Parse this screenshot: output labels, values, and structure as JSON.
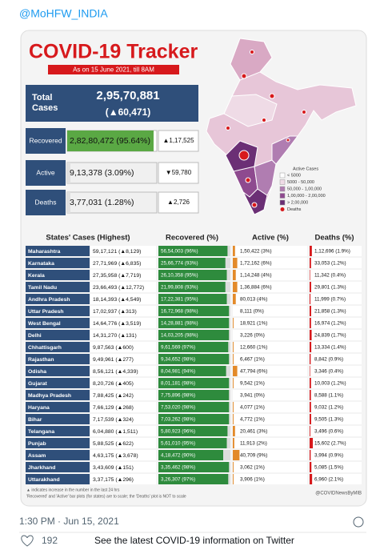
{
  "handle": "@MoHFW_INDIA",
  "infographic": {
    "title": "COVID-19 Tracker",
    "subtitle": "As on 15 June 2021, till 8AM",
    "total": {
      "label": "Total Cases",
      "value": "2,95,70,881",
      "change": "(▲60,471)"
    },
    "summary": [
      {
        "label": "Recovered",
        "value": "2,82,80,472 (95.64%)",
        "change": "▲1,17,525"
      },
      {
        "label": "Active",
        "value": "9,13,378 (3.09%)",
        "change": "▼59,780"
      },
      {
        "label": "Deaths",
        "value": "3,77,031 (1.28%)",
        "change": "▲2,726"
      }
    ],
    "legend": {
      "title": "Active Cases",
      "items": [
        "< 5000",
        "5000 - 50,000",
        "50,000 - 1,00,000",
        "1,00,000 - 2,00,000",
        "> 2,00,000",
        "Deaths"
      ]
    },
    "table": {
      "headers": [
        "States' Cases (Highest)",
        "Recovered (%)",
        "Active (%)",
        "Deaths (%)"
      ],
      "rows": [
        {
          "state": "Maharashtra",
          "cases": "59,17,121 (▲8,129)",
          "recovered": "56,54,003 (96%)",
          "recovered_pct": 96,
          "active": "1,50,422 (3%)",
          "active_pct": 3,
          "deaths": "1,12,696 (1.9%)",
          "deaths_pct": 1.9
        },
        {
          "state": "Karnataka",
          "cases": "27,71,969 (▲6,835)",
          "recovered": "25,66,774 (93%)",
          "recovered_pct": 93,
          "active": "1,72,162 (6%)",
          "active_pct": 6,
          "deaths": "33,053 (1.2%)",
          "deaths_pct": 1.2
        },
        {
          "state": "Kerala",
          "cases": "27,35,958 (▲7,719)",
          "recovered": "26,10,358 (95%)",
          "recovered_pct": 95,
          "active": "1,14,248 (4%)",
          "active_pct": 4,
          "deaths": "11,342 (0.4%)",
          "deaths_pct": 0.4
        },
        {
          "state": "Tamil Nadu",
          "cases": "23,66,493 (▲12,772)",
          "recovered": "21,99,808 (93%)",
          "recovered_pct": 93,
          "active": "1,36,884 (6%)",
          "active_pct": 6,
          "deaths": "29,801 (1.3%)",
          "deaths_pct": 1.3
        },
        {
          "state": "Andhra Pradesh",
          "cases": "18,14,393 (▲4,549)",
          "recovered": "17,22,381 (95%)",
          "recovered_pct": 95,
          "active": "80,013 (4%)",
          "active_pct": 4,
          "deaths": "11,999 (0.7%)",
          "deaths_pct": 0.7
        },
        {
          "state": "Uttar Pradesh",
          "cases": "17,02,937 (▲313)",
          "recovered": "16,72,968 (98%)",
          "recovered_pct": 98,
          "active": "8,111 (0%)",
          "active_pct": 0,
          "deaths": "21,858 (1.3%)",
          "deaths_pct": 1.3
        },
        {
          "state": "West Bengal",
          "cases": "14,64,776 (▲3,519)",
          "recovered": "14,28,881 (98%)",
          "recovered_pct": 98,
          "active": "18,921 (1%)",
          "active_pct": 1,
          "deaths": "16,974 (1.2%)",
          "deaths_pct": 1.2
        },
        {
          "state": "Delhi",
          "cases": "14,31,270 (▲131)",
          "recovered": "14,03,205 (98%)",
          "recovered_pct": 98,
          "active": "3,226 (0%)",
          "active_pct": 0,
          "deaths": "24,839 (1.7%)",
          "deaths_pct": 1.7
        },
        {
          "state": "Chhattisgarh",
          "cases": "9,87,563 (▲600)",
          "recovered": "9,61,569 (97%)",
          "recovered_pct": 97,
          "active": "12,660 (1%)",
          "active_pct": 1,
          "deaths": "13,334 (1.4%)",
          "deaths_pct": 1.4
        },
        {
          "state": "Rajasthan",
          "cases": "9,49,961 (▲277)",
          "recovered": "9,34,652 (98%)",
          "recovered_pct": 98,
          "active": "6,467 (1%)",
          "active_pct": 1,
          "deaths": "8,842 (0.9%)",
          "deaths_pct": 0.9
        },
        {
          "state": "Odisha",
          "cases": "8,56,121 (▲4,339)",
          "recovered": "8,04,981 (94%)",
          "recovered_pct": 94,
          "active": "47,794 (6%)",
          "active_pct": 6,
          "deaths": "3,346 (0.4%)",
          "deaths_pct": 0.4
        },
        {
          "state": "Gujarat",
          "cases": "8,20,726 (▲405)",
          "recovered": "8,01,181 (98%)",
          "recovered_pct": 98,
          "active": "9,542 (1%)",
          "active_pct": 1,
          "deaths": "10,003 (1.2%)",
          "deaths_pct": 1.2
        },
        {
          "state": "Madhya Pradesh",
          "cases": "7,88,425 (▲242)",
          "recovered": "7,75,896 (98%)",
          "recovered_pct": 98,
          "active": "3,941 (0%)",
          "active_pct": 0,
          "deaths": "8,588 (1.1%)",
          "deaths_pct": 1.1
        },
        {
          "state": "Haryana",
          "cases": "7,66,129 (▲268)",
          "recovered": "7,53,020 (98%)",
          "recovered_pct": 98,
          "active": "4,077 (1%)",
          "active_pct": 1,
          "deaths": "9,032 (1.2%)",
          "deaths_pct": 1.2
        },
        {
          "state": "Bihar",
          "cases": "7,17,539 (▲324)",
          "recovered": "7,03,262 (98%)",
          "recovered_pct": 98,
          "active": "4,772 (1%)",
          "active_pct": 1,
          "deaths": "9,505 (1.3%)",
          "deaths_pct": 1.3
        },
        {
          "state": "Telangana",
          "cases": "6,04,880 (▲1,511)",
          "recovered": "5,80,923 (96%)",
          "recovered_pct": 96,
          "active": "20,461 (3%)",
          "active_pct": 3,
          "deaths": "3,496 (0.6%)",
          "deaths_pct": 0.6
        },
        {
          "state": "Punjab",
          "cases": "5,88,525 (▲622)",
          "recovered": "5,61,010 (95%)",
          "recovered_pct": 95,
          "active": "11,913 (2%)",
          "active_pct": 2,
          "deaths": "15,602 (2.7%)",
          "deaths_pct": 2.7
        },
        {
          "state": "Assam",
          "cases": "4,63,175 (▲3,678)",
          "recovered": "4,18,472 (90%)",
          "recovered_pct": 90,
          "active": "40,709 (9%)",
          "active_pct": 9,
          "deaths": "3,994 (0.9%)",
          "deaths_pct": 0.9
        },
        {
          "state": "Jharkhand",
          "cases": "3,43,609 (▲151)",
          "recovered": "3,35,462 (98%)",
          "recovered_pct": 98,
          "active": "3,062 (1%)",
          "active_pct": 1,
          "deaths": "5,085 (1.5%)",
          "deaths_pct": 1.5
        },
        {
          "state": "Uttarakhand",
          "cases": "3,37,175 (▲296)",
          "recovered": "3,26,307 (97%)",
          "recovered_pct": 97,
          "active": "3,906 (1%)",
          "active_pct": 1,
          "deaths": "6,960 (2.1%)",
          "deaths_pct": 2.1
        }
      ]
    },
    "footnotes": [
      "▲ indicates increase in the number in the last 24 hrs",
      "'Recovered' and 'Active' bar plots (for states) are to scale; the 'Deaths' plot is NOT to scale"
    ],
    "source": "@COVIDNewsByMIB"
  },
  "tweet": {
    "time": "1:30 PM · Jun 15, 2021",
    "likes": "192",
    "info_link": "See the latest COVID-19 information on Twitter"
  }
}
